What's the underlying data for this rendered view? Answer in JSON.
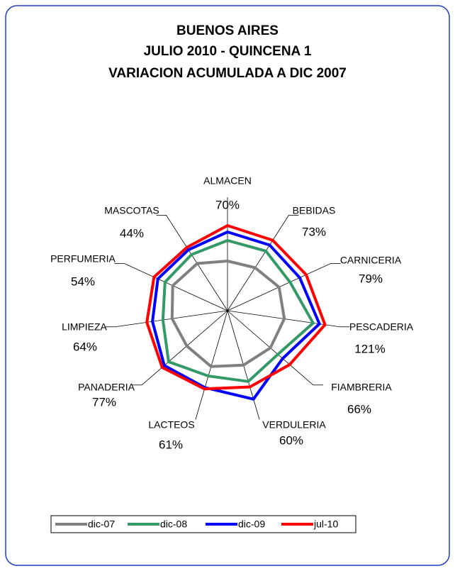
{
  "chart_data": {
    "type": "radar",
    "title": [
      "BUENOS AIRES",
      "JULIO 2010 - QUINCENA 1",
      "VARIACION  ACUMULADA A DIC 2007"
    ],
    "categories": [
      "ALMACEN",
      "BEBIDAS",
      "CARNICERIA",
      "PESCADERIA",
      "FIAMBRERIA",
      "VERDULERIA",
      "LACTEOS",
      "PANADERIA",
      "LIMPIEZA",
      "PERFUMERIA",
      "MASCOTAS"
    ],
    "rlim": [
      0,
      160
    ],
    "series": [
      {
        "name": "dic-07",
        "color": "#808080",
        "values": [
          70,
          72,
          80,
          81,
          80,
          80,
          82,
          76,
          79,
          85,
          79
        ]
      },
      {
        "name": "dic-08",
        "color": "#339966",
        "values": [
          99,
          100,
          97,
          122,
          94,
          104,
          96,
          110,
          92,
          97,
          94
        ]
      },
      {
        "name": "dic-09",
        "color": "#0000ff",
        "values": [
          111,
          110,
          112,
          131,
          103,
          130,
          113,
          118,
          107,
          108,
          102
        ]
      },
      {
        "name": "jul-10",
        "color": "#ff0000",
        "values": [
          120,
          118,
          122,
          139,
          116,
          112,
          115,
          122,
          115,
          114,
          106
        ]
      }
    ],
    "variation": {
      "values": [
        70,
        73,
        79,
        121,
        66,
        60,
        61,
        77,
        64,
        54,
        44
      ],
      "value_labels": [
        "70%",
        "73%",
        "79%",
        "121%",
        "66%",
        "60%",
        "61%",
        "77%",
        "64%",
        "54%",
        "44%"
      ]
    },
    "legend": "bottom"
  }
}
